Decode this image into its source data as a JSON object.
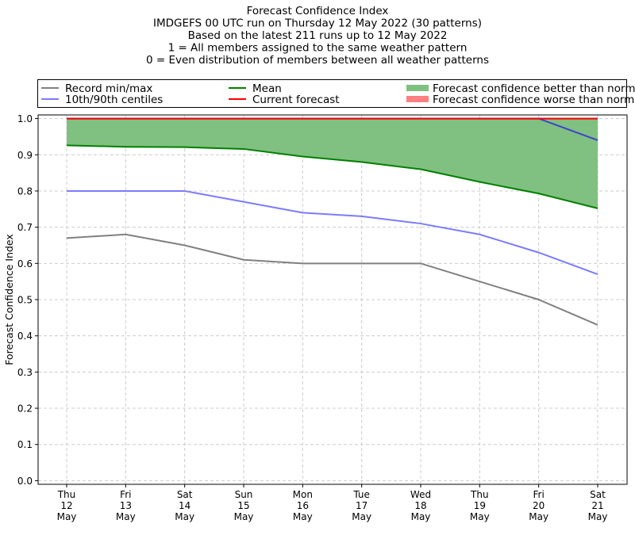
{
  "chart_data": {
    "type": "line",
    "title_lines": [
      "Forecast Confidence Index",
      "IMDGEFS 00 UTC run on Thursday 12 May 2022 (30 patterns)",
      "Based on the latest 211 runs up to 12 May 2022",
      "1 = All members assigned to the same weather pattern",
      "0 = Even distribution of members between all weather patterns"
    ],
    "ylabel": "Forecast Confidence Index",
    "xlabel": "",
    "ylim": [
      -0.01,
      1.01
    ],
    "yticks": [
      "0.0",
      "0.1",
      "0.2",
      "0.3",
      "0.4",
      "0.5",
      "0.6",
      "0.7",
      "0.8",
      "0.9",
      "1.0"
    ],
    "grid": true,
    "categories": [
      [
        "Thu",
        "12",
        "May"
      ],
      [
        "Fri",
        "13",
        "May"
      ],
      [
        "Sat",
        "14",
        "May"
      ],
      [
        "Sun",
        "15",
        "May"
      ],
      [
        "Mon",
        "16",
        "May"
      ],
      [
        "Tue",
        "17",
        "May"
      ],
      [
        "Wed",
        "18",
        "May"
      ],
      [
        "Thu",
        "19",
        "May"
      ],
      [
        "Fri",
        "20",
        "May"
      ],
      [
        "Sat",
        "21",
        "May"
      ]
    ],
    "legend": {
      "placement": "top",
      "entries": [
        {
          "label": "Record min/max",
          "color": "#808080",
          "kind": "line"
        },
        {
          "label": "10th/90th centiles",
          "color": "#7b7bff",
          "kind": "line"
        },
        {
          "label": "Mean",
          "color": "#008000",
          "kind": "line"
        },
        {
          "label": "Current forecast",
          "color": "#ff0000",
          "kind": "line"
        },
        {
          "label": "Forecast confidence better than normal",
          "color": "#80c080",
          "kind": "patch"
        },
        {
          "label": "Forecast confidence worse than normal",
          "color": "#ff8080",
          "kind": "patch"
        }
      ]
    },
    "series": [
      {
        "name": "Record min/max",
        "role": "record_max",
        "color": "#808080",
        "values": [
          1,
          1,
          1,
          1,
          1,
          1,
          1,
          1,
          1,
          1
        ]
      },
      {
        "name": "Record min/max",
        "role": "record_min",
        "color": "#808080",
        "values": [
          0.67,
          0.68,
          0.65,
          0.61,
          0.6,
          0.6,
          0.6,
          0.55,
          0.5,
          0.43
        ]
      },
      {
        "name": "10th/90th centiles",
        "role": "p10",
        "color": "#7b7bff",
        "values": [
          0.8,
          0.8,
          0.8,
          0.77,
          0.74,
          0.73,
          0.71,
          0.68,
          0.63,
          0.57
        ]
      },
      {
        "name": "10th/90th centiles",
        "role": "p90",
        "color": "#4040d0",
        "values": [
          1,
          1,
          1,
          1,
          1,
          1,
          1,
          1,
          1,
          0.94
        ]
      },
      {
        "name": "Mean",
        "role": "mean",
        "color": "#008000",
        "values": [
          0.926,
          0.922,
          0.921,
          0.916,
          0.895,
          0.88,
          0.86,
          0.825,
          0.793,
          0.752
        ]
      },
      {
        "name": "Current forecast",
        "role": "current",
        "color": "#ff0000",
        "values": [
          1,
          1,
          1,
          1,
          1,
          1,
          1,
          1,
          1,
          1
        ]
      }
    ]
  }
}
